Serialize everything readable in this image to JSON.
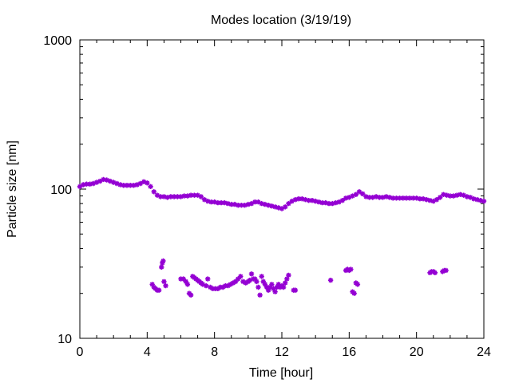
{
  "chart_data": {
    "type": "scatter",
    "title": "Modes location (3/19/19)",
    "xlabel": "Time [hour]",
    "ylabel": "Particle size [nm]",
    "xlim": [
      0,
      24
    ],
    "ylim": [
      10,
      1000
    ],
    "yscale": "log",
    "x_ticks": [
      "0",
      "4",
      "8",
      "12",
      "16",
      "20",
      "24"
    ],
    "y_ticks": [
      "10",
      "100",
      "1000"
    ],
    "grid": false,
    "legend": "none",
    "marker": "star",
    "color": "#9400d3",
    "series": [
      {
        "x": [
          0.0,
          0.2,
          0.4,
          0.6,
          0.8,
          1.0,
          1.2,
          1.4,
          1.6,
          1.8,
          2.0,
          2.2,
          2.4,
          2.6,
          2.8,
          3.0,
          3.2,
          3.4,
          3.6,
          3.8,
          4.0,
          4.2,
          4.4,
          4.6,
          4.8,
          5.0,
          5.2,
          5.4,
          5.6,
          5.8,
          6.0,
          6.2,
          6.4,
          6.6,
          6.8,
          7.0,
          7.2,
          7.4,
          7.6,
          7.8,
          8.0,
          8.2,
          8.4,
          8.6,
          8.8,
          9.0,
          9.2,
          9.4,
          9.6,
          9.8,
          10.0,
          10.2,
          10.4,
          10.6,
          10.8,
          11.0,
          11.2,
          11.4,
          11.6,
          11.8,
          12.0,
          12.2,
          12.4,
          12.6,
          12.8,
          13.0,
          13.2,
          13.4,
          13.6,
          13.8,
          14.0,
          14.2,
          14.4,
          14.6,
          14.8,
          15.0,
          15.2,
          15.4,
          15.6,
          15.8,
          16.0,
          16.2,
          16.4,
          16.6,
          16.8,
          17.0,
          17.2,
          17.4,
          17.6,
          17.8,
          18.0,
          18.2,
          18.4,
          18.6,
          18.8,
          19.0,
          19.2,
          19.4,
          19.6,
          19.8,
          20.0,
          20.2,
          20.4,
          20.6,
          20.8,
          21.0,
          21.2,
          21.4,
          21.6,
          21.8,
          22.0,
          22.2,
          22.4,
          22.6,
          22.8,
          23.0,
          23.2,
          23.4,
          23.6,
          23.8,
          24.0
        ],
        "y": [
          104,
          107,
          108,
          108,
          109,
          111,
          113,
          116,
          115,
          113,
          111,
          109,
          107,
          106,
          106,
          106,
          106,
          107,
          109,
          112,
          110,
          104,
          96,
          91,
          89,
          89,
          88,
          89,
          89,
          89,
          89,
          90,
          90,
          91,
          91,
          91,
          89,
          85,
          83,
          82,
          82,
          81,
          81,
          81,
          80,
          79,
          79,
          78,
          78,
          78,
          79,
          80,
          82,
          82,
          80,
          79,
          78,
          77,
          76,
          75,
          74,
          76,
          80,
          83,
          85,
          86,
          86,
          85,
          84,
          84,
          83,
          82,
          81,
          81,
          80,
          80,
          81,
          82,
          84,
          87,
          88,
          90,
          92,
          96,
          93,
          89,
          88,
          88,
          89,
          88,
          88,
          89,
          88,
          87,
          87,
          87,
          87,
          87,
          87,
          87,
          87,
          86,
          86,
          85,
          84,
          83,
          85,
          88,
          92,
          91,
          90,
          90,
          91,
          92,
          91,
          89,
          88,
          86,
          85,
          84,
          83
        ]
      },
      {
        "x": [
          4.3,
          4.4,
          4.5,
          4.6,
          4.7,
          4.85,
          4.9,
          4.95,
          5.0,
          5.1,
          6.0,
          6.15,
          6.3,
          6.4,
          6.5,
          6.6,
          6.7,
          6.8,
          6.9,
          7.0,
          7.1,
          7.2,
          7.3,
          7.5,
          7.6,
          7.75,
          7.9,
          8.05,
          8.2,
          8.35,
          8.5,
          8.65,
          8.8,
          8.95,
          9.1,
          9.25,
          9.4,
          9.55,
          9.7,
          9.85,
          10.0,
          10.1,
          10.2,
          10.3,
          10.4,
          10.5,
          10.6,
          10.7,
          10.8,
          10.9,
          11.0,
          11.1,
          11.2,
          11.3,
          11.4,
          11.5,
          11.6,
          11.7,
          11.8,
          11.9,
          12.0,
          12.1,
          12.2,
          12.3,
          12.4,
          12.7,
          12.8,
          14.9,
          15.8,
          15.9,
          16.0,
          16.1,
          16.2,
          16.3,
          16.4,
          16.5,
          20.8,
          20.9,
          21.0,
          21.1,
          21.55,
          21.65,
          21.75
        ],
        "y": [
          23.0,
          22.0,
          21.5,
          21.0,
          21.0,
          30.0,
          32.0,
          33.0,
          24.0,
          22.5,
          25.0,
          25.0,
          24.0,
          23.0,
          20.0,
          19.5,
          26.0,
          25.5,
          25.0,
          24.5,
          24.0,
          23.5,
          23.0,
          22.5,
          25.0,
          22.0,
          21.5,
          21.5,
          21.5,
          22.0,
          22.0,
          22.5,
          22.5,
          23.0,
          23.5,
          24.0,
          25.0,
          26.0,
          24.0,
          23.5,
          24.0,
          24.5,
          27.0,
          25.0,
          25.0,
          24.0,
          22.0,
          19.5,
          26.0,
          24.0,
          23.0,
          22.0,
          21.0,
          22.0,
          23.0,
          21.5,
          20.5,
          22.0,
          23.0,
          22.0,
          22.5,
          22.0,
          23.5,
          25.0,
          26.5,
          21.0,
          21.0,
          24.5,
          28.5,
          29.0,
          28.5,
          29.0,
          20.5,
          20.0,
          23.5,
          23.0,
          27.5,
          28.0,
          28.0,
          27.5,
          28.0,
          28.5,
          28.5
        ]
      }
    ]
  }
}
